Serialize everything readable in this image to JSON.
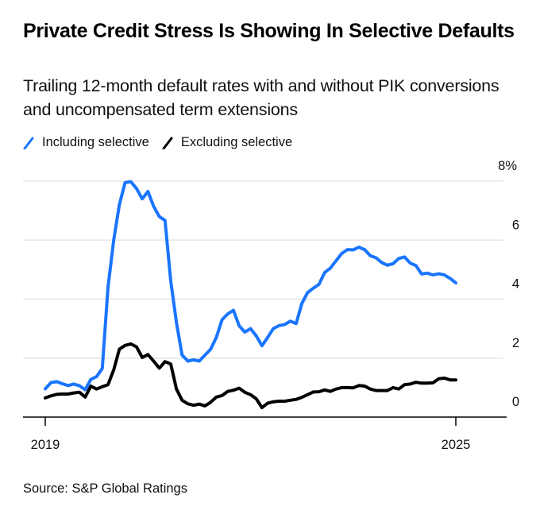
{
  "header": {
    "title": "Private Credit Stress Is Showing In Selective Defaults",
    "subtitle": "Trailing 12-month default rates with and without PIK conversions and uncompensated term extensions"
  },
  "legend": [
    {
      "label": "Including selective",
      "color": "#1a75ff"
    },
    {
      "label": "Excluding selective",
      "color": "#000000"
    }
  ],
  "footer": {
    "source": "Source: S&P Global Ratings"
  },
  "chart_data": {
    "type": "line",
    "title": "Private Credit Stress Is Showing In Selective Defaults",
    "subtitle": "Trailing 12-month default rates with and without PIK conversions and uncompensated term extensions",
    "xlabel": "",
    "ylabel": "",
    "x_start": "2019-01",
    "x_frequency": "monthly",
    "x_ticks": [
      {
        "value": 2019,
        "label": "2019"
      },
      {
        "value": 2025,
        "label": "2025"
      }
    ],
    "xlim": [
      2018.67,
      2025.75
    ],
    "ylim": [
      0,
      8
    ],
    "y_ticks": [
      {
        "value": 0,
        "label": "0"
      },
      {
        "value": 2,
        "label": "2"
      },
      {
        "value": 4,
        "label": "4"
      },
      {
        "value": 6,
        "label": "6"
      },
      {
        "value": 8,
        "label": "8%"
      }
    ],
    "y_axis_side": "right",
    "grid": true,
    "legend_position": "top-left",
    "series": [
      {
        "name": "Including selective",
        "color": "#1a75ff",
        "values": [
          0.96,
          1.17,
          1.2,
          1.13,
          1.07,
          1.12,
          1.06,
          0.93,
          1.28,
          1.37,
          1.65,
          4.4,
          6.0,
          7.2,
          7.95,
          7.98,
          7.75,
          7.4,
          7.65,
          7.15,
          6.8,
          6.67,
          4.62,
          3.2,
          2.1,
          1.9,
          1.94,
          1.9,
          2.1,
          2.3,
          2.7,
          3.3,
          3.5,
          3.62,
          3.1,
          2.88,
          3.0,
          2.75,
          2.42,
          2.7,
          3.0,
          3.1,
          3.14,
          3.25,
          3.17,
          3.85,
          4.22,
          4.37,
          4.5,
          4.9,
          5.05,
          5.3,
          5.55,
          5.68,
          5.67,
          5.76,
          5.68,
          5.47,
          5.4,
          5.24,
          5.15,
          5.2,
          5.38,
          5.43,
          5.22,
          5.14,
          4.85,
          4.88,
          4.82,
          4.86,
          4.82,
          4.7,
          4.55
        ]
      },
      {
        "name": "Excluding selective",
        "color": "#000000",
        "values": [
          0.65,
          0.72,
          0.77,
          0.78,
          0.78,
          0.82,
          0.84,
          0.68,
          1.05,
          0.95,
          1.03,
          1.1,
          1.6,
          2.3,
          2.43,
          2.48,
          2.38,
          2.02,
          2.12,
          1.9,
          1.66,
          1.88,
          1.8,
          0.95,
          0.57,
          0.45,
          0.4,
          0.44,
          0.38,
          0.5,
          0.68,
          0.73,
          0.87,
          0.91,
          0.98,
          0.84,
          0.76,
          0.62,
          0.32,
          0.47,
          0.52,
          0.54,
          0.54,
          0.57,
          0.6,
          0.67,
          0.76,
          0.85,
          0.86,
          0.92,
          0.87,
          0.95,
          1.0,
          1.0,
          0.99,
          1.07,
          1.05,
          0.95,
          0.9,
          0.9,
          0.9,
          1.0,
          0.95,
          1.1,
          1.12,
          1.18,
          1.15,
          1.15,
          1.16,
          1.3,
          1.32,
          1.26,
          1.26
        ]
      }
    ]
  }
}
